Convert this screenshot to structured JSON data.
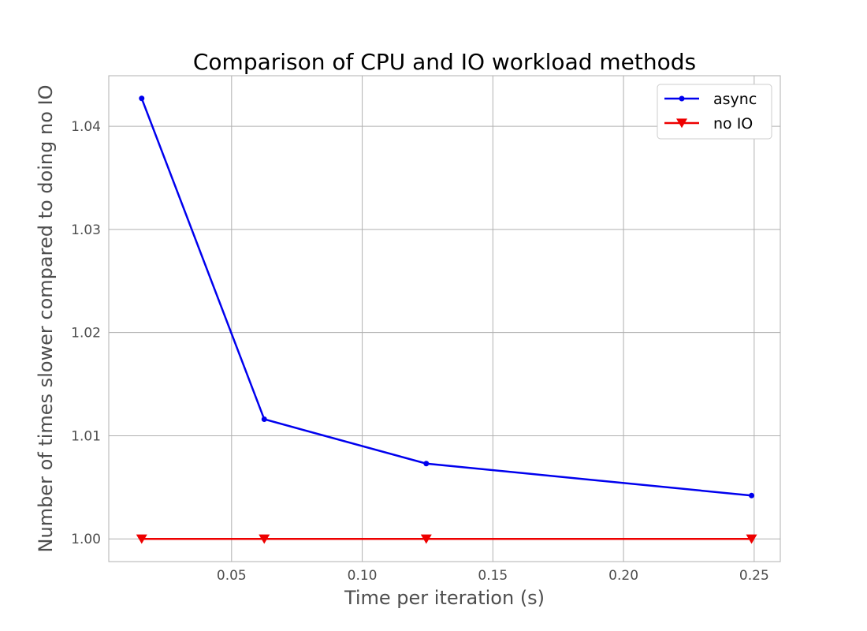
{
  "chart_data": {
    "type": "line",
    "title": "Comparison of CPU and IO workload methods",
    "xlabel": "Time per iteration (s)",
    "ylabel": "Number of times slower compared to doing no IO",
    "xlim": [
      0.003,
      0.26
    ],
    "ylim": [
      0.9978,
      1.0449
    ],
    "xticks": [
      0.05,
      0.1,
      0.15,
      0.2,
      0.25
    ],
    "xtick_labels": [
      "0.05",
      "0.10",
      "0.15",
      "0.20",
      "0.25"
    ],
    "yticks": [
      1.0,
      1.01,
      1.02,
      1.03,
      1.04
    ],
    "ytick_labels": [
      "1.00",
      "1.01",
      "1.02",
      "1.03",
      "1.04"
    ],
    "grid": true,
    "legend_position": "top-right",
    "series": [
      {
        "name": "async",
        "color": "#0000ee",
        "marker": "circle",
        "x": [
          0.0156,
          0.0625,
          0.1245,
          0.249
        ],
        "y": [
          1.0427,
          1.0116,
          1.0073,
          1.0042
        ]
      },
      {
        "name": "no IO",
        "color": "#ee0000",
        "marker": "triangle-down",
        "x": [
          0.0156,
          0.0625,
          0.1245,
          0.249
        ],
        "y": [
          1.0,
          1.0,
          1.0,
          1.0
        ]
      }
    ]
  }
}
